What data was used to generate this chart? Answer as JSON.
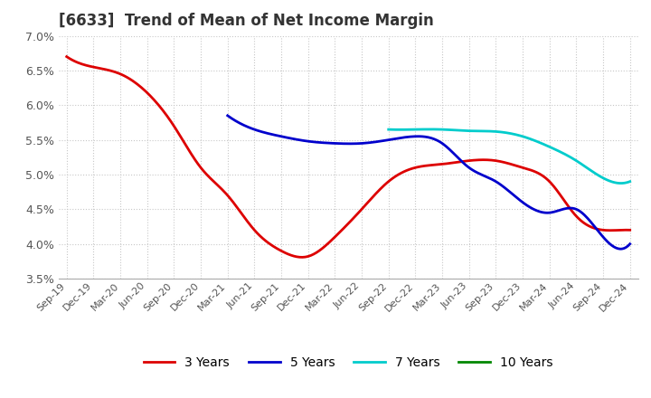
{
  "title": "[6633]  Trend of Mean of Net Income Margin",
  "ylim": [
    0.035,
    0.07
  ],
  "yticks": [
    0.035,
    0.04,
    0.045,
    0.05,
    0.055,
    0.06,
    0.065,
    0.07
  ],
  "ytick_labels": [
    "3.5%",
    "4.0%",
    "4.5%",
    "5.0%",
    "5.5%",
    "6.0%",
    "6.5%",
    "7.0%"
  ],
  "x_labels": [
    "Sep-19",
    "Dec-19",
    "Mar-20",
    "Jun-20",
    "Sep-20",
    "Dec-20",
    "Mar-21",
    "Jun-21",
    "Sep-21",
    "Dec-21",
    "Mar-22",
    "Jun-22",
    "Sep-22",
    "Dec-22",
    "Mar-23",
    "Jun-23",
    "Sep-23",
    "Dec-23",
    "Mar-24",
    "Jun-24",
    "Sep-24",
    "Dec-24"
  ],
  "line_3y": [
    0.067,
    0.0655,
    0.0645,
    0.0618,
    0.057,
    0.051,
    0.047,
    0.042,
    0.039,
    0.0382,
    0.041,
    0.045,
    0.049,
    0.051,
    0.0515,
    0.052,
    0.052,
    0.051,
    0.049,
    0.044,
    0.042,
    0.042
  ],
  "line_5y": [
    null,
    null,
    null,
    null,
    null,
    null,
    0.0585,
    0.0565,
    0.0555,
    0.0548,
    0.0545,
    0.0545,
    0.055,
    0.0555,
    0.0545,
    0.051,
    0.049,
    0.046,
    0.0445,
    0.045,
    0.041,
    0.04
  ],
  "line_7y": [
    null,
    null,
    null,
    null,
    null,
    null,
    null,
    null,
    null,
    null,
    null,
    null,
    0.0565,
    0.0565,
    0.0565,
    0.0563,
    0.0562,
    0.0555,
    0.054,
    0.052,
    0.0495,
    0.049
  ],
  "line_10y": [
    null,
    null,
    null,
    null,
    null,
    null,
    null,
    null,
    null,
    null,
    null,
    null,
    null,
    null,
    null,
    null,
    null,
    null,
    null,
    null,
    null,
    null
  ],
  "color_3y": "#dd0000",
  "color_5y": "#0000cc",
  "color_7y": "#00cccc",
  "color_10y": "#008800",
  "legend_labels": [
    "3 Years",
    "5 Years",
    "7 Years",
    "10 Years"
  ],
  "background_color": "#ffffff",
  "grid_color": "#c8c8c8",
  "title_fontsize": 12,
  "tick_fontsize": 9,
  "linewidth": 2.0
}
